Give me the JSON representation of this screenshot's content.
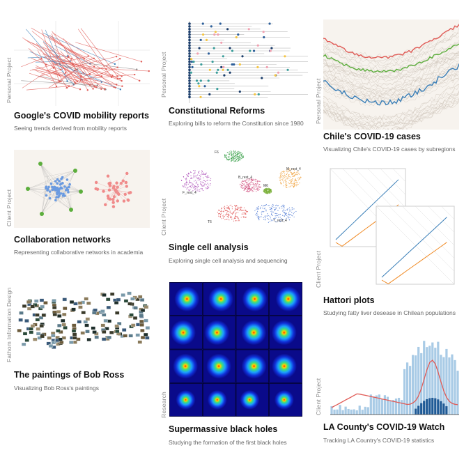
{
  "projects": [
    {
      "id": "mobility",
      "category": "Personal Project",
      "title": "Google's COVID mobility reports",
      "subtitle": "Seeing trends derived from mobility reports"
    },
    {
      "id": "constitution",
      "category": "Personal Project",
      "title": "Constitutional Reforms",
      "subtitle": "Exploring bills to reform the Constitution since 1980"
    },
    {
      "id": "chile",
      "category": "Personal Project",
      "title": "Chile's COVID-19 cases",
      "subtitle": "Visualizing Chile's COVID-19 cases by subregions"
    },
    {
      "id": "collab",
      "category": "Client Project",
      "title": "Collaboration networks",
      "subtitle": "Representing collaborative networks in academia"
    },
    {
      "id": "singlecell",
      "category": "Client Project",
      "title": "Single cell analysis",
      "subtitle": "Exploring single cell analysis and sequencing"
    },
    {
      "id": "hattori",
      "category": "Client Project",
      "title": "Hattori plots",
      "subtitle": "Studying fatty liver desease in Chilean populations"
    },
    {
      "id": "bobross",
      "category": "Fathom Information Design",
      "title": "The paintings of Bob Ross",
      "subtitle": "Visualizing Bob Ross's paintings"
    },
    {
      "id": "blackholes",
      "category": "Research",
      "title": "Supermassive black holes",
      "subtitle": "Studying the formation of the first black holes"
    },
    {
      "id": "lacounty",
      "category": "Client Project",
      "title": "LA County's COVID-19 Watch",
      "subtitle": "Tracking LA Country's COVID-19 statistics"
    }
  ],
  "thumb_labels": {
    "singlecell": [
      "F6",
      "B_rest_4",
      "M_rest_4",
      "F_rest_4",
      "M6",
      "T6",
      "T_rest_4"
    ]
  },
  "colors": {
    "accent_red": "#e05a55",
    "accent_blue": "#3a7fb8",
    "accent_green": "#5cae3c",
    "accent_orange": "#f08a24"
  }
}
